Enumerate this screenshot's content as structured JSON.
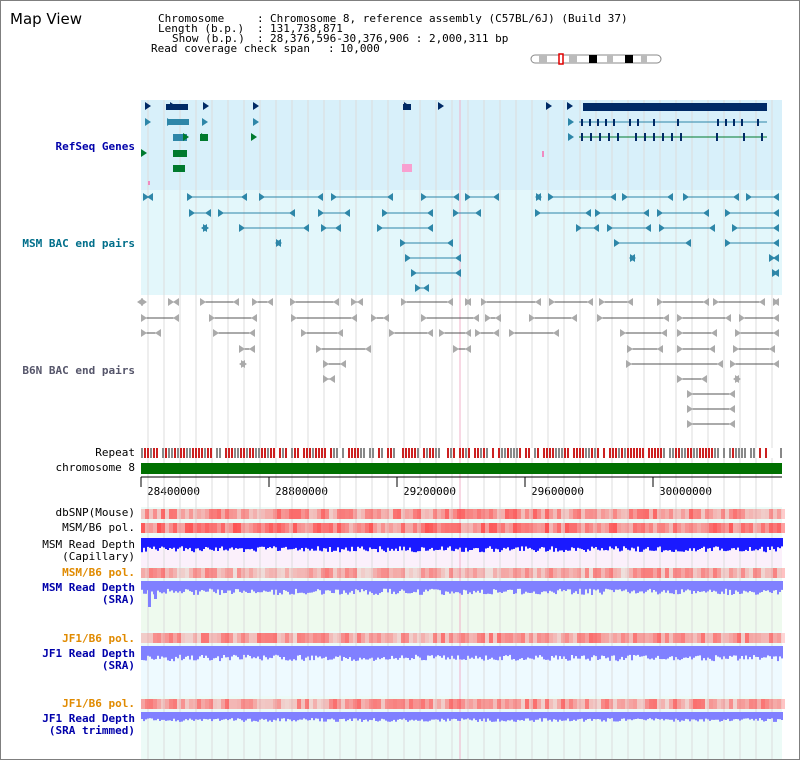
{
  "app": {
    "title": "Map View"
  },
  "header": {
    "chromosome_key": "Chromosome",
    "chromosome_val": "Chromosome 8, reference assembly (C57BL/6J) (Build 37)",
    "length_key": "Length (b.p.)",
    "length_val": "131,738,871",
    "show_key": "Show (b.p.)",
    "show_val": "28,376,596-30,376,906 : 2,000,311 bp",
    "coverage_key": "Read coverage check span",
    "coverage_val": "10,000"
  },
  "tracks": {
    "refseq": "RefSeq Genes",
    "msm_bac": "MSM BAC end pairs",
    "b6n_bac": "B6N BAC end pairs",
    "repeat": "Repeat",
    "chrom": "chromosome 8",
    "dbsnp": "dbSNP(Mouse)",
    "msm_pol": "MSM/B6 pol.",
    "msm_depth_cap_1": "MSM Read Depth",
    "msm_depth_cap_2": "(Capillary)",
    "msm_pol2": "MSM/B6 pol.",
    "msm_depth_sra_1": "MSM Read Depth",
    "msm_depth_sra_2": "(SRA)",
    "jf1_pol": "JF1/B6 pol.",
    "jf1_depth_sra_1": "JF1 Read Depth",
    "jf1_depth_sra_2": "(SRA)",
    "jf1_pol2": "JF1/B6 pol.",
    "jf1_depth_trim_1": "JF1 Read Depth",
    "jf1_depth_trim_2": "(SRA trimmed)"
  },
  "axis": {
    "ticks": [
      "28400000",
      "28800000",
      "29200000",
      "29600000",
      "30000000"
    ]
  },
  "colors": {
    "refseq_bg": "#d8f0fa",
    "msm_bg": "#e3f7fb",
    "b6n_bg": "#ffffff",
    "chrom_bar": "#007000",
    "gene_dark": "#002a66",
    "gene_teal": "#2e86a8",
    "gene_green": "#007a2e",
    "depth_blue": "#1a1aff",
    "depth_light": "#8080ff",
    "pol_red": "#ff4040"
  }
}
